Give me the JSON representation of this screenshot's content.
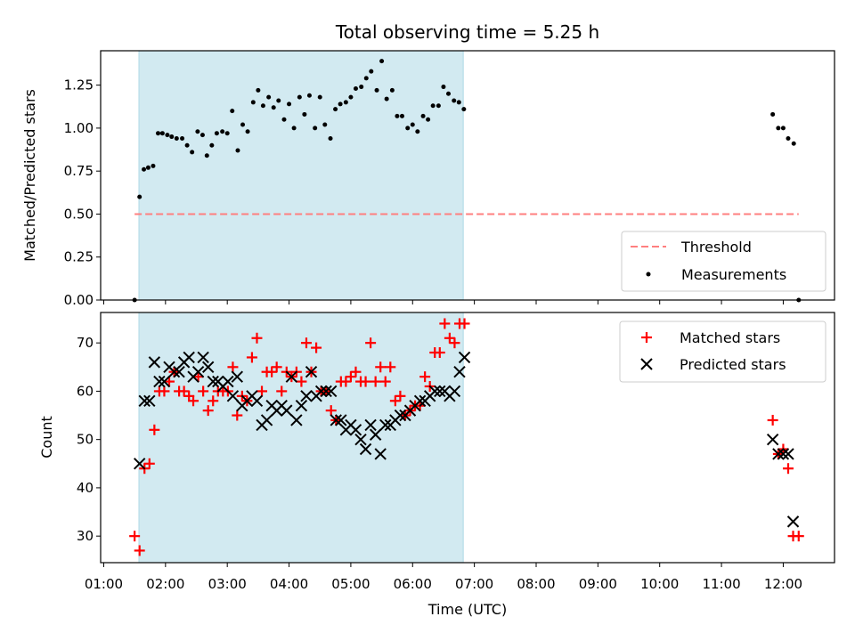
{
  "chart_data": {
    "title": "Total observing time = 5.25 h",
    "xlabel": "Time (UTC)",
    "x_ticks": [
      "01:00",
      "02:00",
      "03:00",
      "04:00",
      "05:00",
      "06:00",
      "07:00",
      "08:00",
      "09:00",
      "10:00",
      "11:00",
      "12:00"
    ],
    "x_range_hours": [
      0.95,
      12.83
    ],
    "shaded_span_hours": [
      1.57,
      6.82
    ],
    "colors": {
      "shade": "#add8e6",
      "threshold": "#ff7f7f",
      "measurements": "#000000",
      "matched": "#ff0000",
      "predicted": "#000000"
    },
    "panels": [
      {
        "type": "scatter",
        "ylabel": "Matched/Predicted stars",
        "ylim": [
          0,
          1.45
        ],
        "y_ticks": [
          "0.00",
          "0.25",
          "0.50",
          "0.75",
          "1.00",
          "1.25"
        ],
        "legend": {
          "position": "lower-right",
          "entries": [
            "Threshold",
            "Measurements"
          ]
        },
        "threshold": {
          "name": "Threshold",
          "y": 0.5,
          "x_range": [
            1.5,
            12.25
          ]
        },
        "series": [
          {
            "name": "Measurements",
            "points": [
              [
                1.5,
                0.0
              ],
              [
                1.58,
                0.6
              ],
              [
                1.65,
                0.76
              ],
              [
                1.72,
                0.77
              ],
              [
                1.8,
                0.78
              ],
              [
                1.88,
                0.97
              ],
              [
                1.95,
                0.97
              ],
              [
                2.03,
                0.96
              ],
              [
                2.1,
                0.95
              ],
              [
                2.18,
                0.94
              ],
              [
                2.27,
                0.94
              ],
              [
                2.35,
                0.9
              ],
              [
                2.43,
                0.86
              ],
              [
                2.52,
                0.98
              ],
              [
                2.6,
                0.96
              ],
              [
                2.67,
                0.84
              ],
              [
                2.75,
                0.9
              ],
              [
                2.83,
                0.97
              ],
              [
                2.92,
                0.98
              ],
              [
                3.0,
                0.97
              ],
              [
                3.08,
                1.1
              ],
              [
                3.17,
                0.87
              ],
              [
                3.25,
                1.02
              ],
              [
                3.33,
                0.98
              ],
              [
                3.42,
                1.15
              ],
              [
                3.5,
                1.22
              ],
              [
                3.58,
                1.13
              ],
              [
                3.67,
                1.18
              ],
              [
                3.75,
                1.12
              ],
              [
                3.83,
                1.16
              ],
              [
                3.92,
                1.05
              ],
              [
                4.0,
                1.14
              ],
              [
                4.08,
                1.0
              ],
              [
                4.17,
                1.18
              ],
              [
                4.25,
                1.08
              ],
              [
                4.33,
                1.19
              ],
              [
                4.42,
                1.0
              ],
              [
                4.5,
                1.18
              ],
              [
                4.58,
                1.02
              ],
              [
                4.67,
                0.94
              ],
              [
                4.75,
                1.11
              ],
              [
                4.83,
                1.14
              ],
              [
                4.92,
                1.15
              ],
              [
                5.0,
                1.18
              ],
              [
                5.08,
                1.23
              ],
              [
                5.17,
                1.24
              ],
              [
                5.25,
                1.29
              ],
              [
                5.33,
                1.33
              ],
              [
                5.42,
                1.22
              ],
              [
                5.5,
                1.39
              ],
              [
                5.58,
                1.17
              ],
              [
                5.67,
                1.22
              ],
              [
                5.75,
                1.07
              ],
              [
                5.83,
                1.07
              ],
              [
                5.92,
                1.0
              ],
              [
                6.0,
                1.02
              ],
              [
                6.08,
                0.98
              ],
              [
                6.17,
                1.07
              ],
              [
                6.25,
                1.05
              ],
              [
                6.33,
                1.13
              ],
              [
                6.42,
                1.13
              ],
              [
                6.5,
                1.24
              ],
              [
                6.58,
                1.2
              ],
              [
                6.67,
                1.16
              ],
              [
                6.75,
                1.15
              ],
              [
                6.83,
                1.11
              ],
              [
                11.83,
                1.08
              ],
              [
                11.92,
                1.0
              ],
              [
                12.0,
                1.0
              ],
              [
                12.08,
                0.94
              ],
              [
                12.17,
                0.91
              ],
              [
                12.25,
                0.0
              ]
            ]
          }
        ]
      },
      {
        "type": "scatter",
        "ylabel": "Count",
        "ylim": [
          24.5,
          76.3
        ],
        "y_ticks": [
          "30",
          "40",
          "50",
          "60",
          "70"
        ],
        "legend": {
          "position": "top-right",
          "entries": [
            "Matched stars",
            "Predicted stars"
          ]
        },
        "series": [
          {
            "name": "Matched stars",
            "points": [
              [
                1.5,
                30
              ],
              [
                1.58,
                27
              ],
              [
                1.66,
                44
              ],
              [
                1.74,
                45
              ],
              [
                1.82,
                52
              ],
              [
                1.9,
                60
              ],
              [
                1.98,
                60
              ],
              [
                2.06,
                62
              ],
              [
                2.14,
                64
              ],
              [
                2.22,
                60
              ],
              [
                2.3,
                60
              ],
              [
                2.38,
                59
              ],
              [
                2.45,
                58
              ],
              [
                2.53,
                63
              ],
              [
                2.61,
                60
              ],
              [
                2.69,
                56
              ],
              [
                2.77,
                58
              ],
              [
                2.85,
                60
              ],
              [
                2.93,
                60
              ],
              [
                3.01,
                60
              ],
              [
                3.09,
                65
              ],
              [
                3.16,
                55
              ],
              [
                3.24,
                59
              ],
              [
                3.32,
                58
              ],
              [
                3.4,
                67
              ],
              [
                3.48,
                71
              ],
              [
                3.56,
                60
              ],
              [
                3.64,
                64
              ],
              [
                3.72,
                64
              ],
              [
                3.8,
                65
              ],
              [
                3.88,
                60
              ],
              [
                3.96,
                64
              ],
              [
                4.04,
                63
              ],
              [
                4.12,
                64
              ],
              [
                4.2,
                62
              ],
              [
                4.28,
                70
              ],
              [
                4.36,
                64
              ],
              [
                4.44,
                69
              ],
              [
                4.52,
                60
              ],
              [
                4.6,
                60
              ],
              [
                4.68,
                56
              ],
              [
                4.76,
                54
              ],
              [
                4.84,
                62
              ],
              [
                4.92,
                62
              ],
              [
                5.0,
                63
              ],
              [
                5.08,
                64
              ],
              [
                5.16,
                62
              ],
              [
                5.24,
                62
              ],
              [
                5.32,
                70
              ],
              [
                5.4,
                62
              ],
              [
                5.48,
                65
              ],
              [
                5.56,
                62
              ],
              [
                5.64,
                65
              ],
              [
                5.72,
                58
              ],
              [
                5.8,
                59
              ],
              [
                5.88,
                55
              ],
              [
                5.96,
                56
              ],
              [
                6.04,
                57
              ],
              [
                6.12,
                57
              ],
              [
                6.2,
                63
              ],
              [
                6.28,
                61
              ],
              [
                6.36,
                68
              ],
              [
                6.44,
                68
              ],
              [
                6.52,
                74
              ],
              [
                6.6,
                71
              ],
              [
                6.68,
                70
              ],
              [
                6.76,
                74
              ],
              [
                6.84,
                74
              ],
              [
                11.83,
                54
              ],
              [
                11.92,
                47
              ],
              [
                12.0,
                48
              ],
              [
                12.08,
                44
              ],
              [
                12.16,
                30
              ],
              [
                12.25,
                30
              ]
            ]
          },
          {
            "name": "Predicted stars",
            "points": [
              [
                1.58,
                45
              ],
              [
                1.66,
                58
              ],
              [
                1.74,
                58
              ],
              [
                1.82,
                66
              ],
              [
                1.9,
                62
              ],
              [
                1.98,
                62
              ],
              [
                2.06,
                65
              ],
              [
                2.14,
                64
              ],
              [
                2.22,
                64
              ],
              [
                2.3,
                66
              ],
              [
                2.38,
                67
              ],
              [
                2.45,
                63
              ],
              [
                2.53,
                64
              ],
              [
                2.61,
                67
              ],
              [
                2.69,
                65
              ],
              [
                2.77,
                62
              ],
              [
                2.85,
                62
              ],
              [
                2.93,
                61
              ],
              [
                3.01,
                62
              ],
              [
                3.09,
                59
              ],
              [
                3.16,
                63
              ],
              [
                3.24,
                57
              ],
              [
                3.32,
                58
              ],
              [
                3.4,
                59
              ],
              [
                3.48,
                58
              ],
              [
                3.56,
                53
              ],
              [
                3.64,
                54
              ],
              [
                3.72,
                57
              ],
              [
                3.8,
                56
              ],
              [
                3.88,
                57
              ],
              [
                3.96,
                56
              ],
              [
                4.04,
                63
              ],
              [
                4.12,
                54
              ],
              [
                4.2,
                57
              ],
              [
                4.28,
                59
              ],
              [
                4.36,
                64
              ],
              [
                4.44,
                59
              ],
              [
                4.52,
                60
              ],
              [
                4.6,
                60
              ],
              [
                4.68,
                60
              ],
              [
                4.76,
                54
              ],
              [
                4.84,
                54
              ],
              [
                4.92,
                52
              ],
              [
                5.0,
                53
              ],
              [
                5.08,
                52
              ],
              [
                5.16,
                50
              ],
              [
                5.24,
                48
              ],
              [
                5.32,
                53
              ],
              [
                5.4,
                51
              ],
              [
                5.48,
                47
              ],
              [
                5.56,
                53
              ],
              [
                5.64,
                53
              ],
              [
                5.72,
                54
              ],
              [
                5.8,
                55
              ],
              [
                5.88,
                55
              ],
              [
                5.96,
                56
              ],
              [
                6.04,
                57
              ],
              [
                6.12,
                58
              ],
              [
                6.2,
                58
              ],
              [
                6.28,
                59
              ],
              [
                6.36,
                60
              ],
              [
                6.44,
                60
              ],
              [
                6.52,
                60
              ],
              [
                6.6,
                59
              ],
              [
                6.68,
                60
              ],
              [
                6.76,
                64
              ],
              [
                6.84,
                67
              ],
              [
                11.83,
                50
              ],
              [
                11.92,
                47
              ],
              [
                12.0,
                47
              ],
              [
                12.08,
                47
              ],
              [
                12.16,
                33
              ]
            ]
          }
        ]
      }
    ]
  }
}
